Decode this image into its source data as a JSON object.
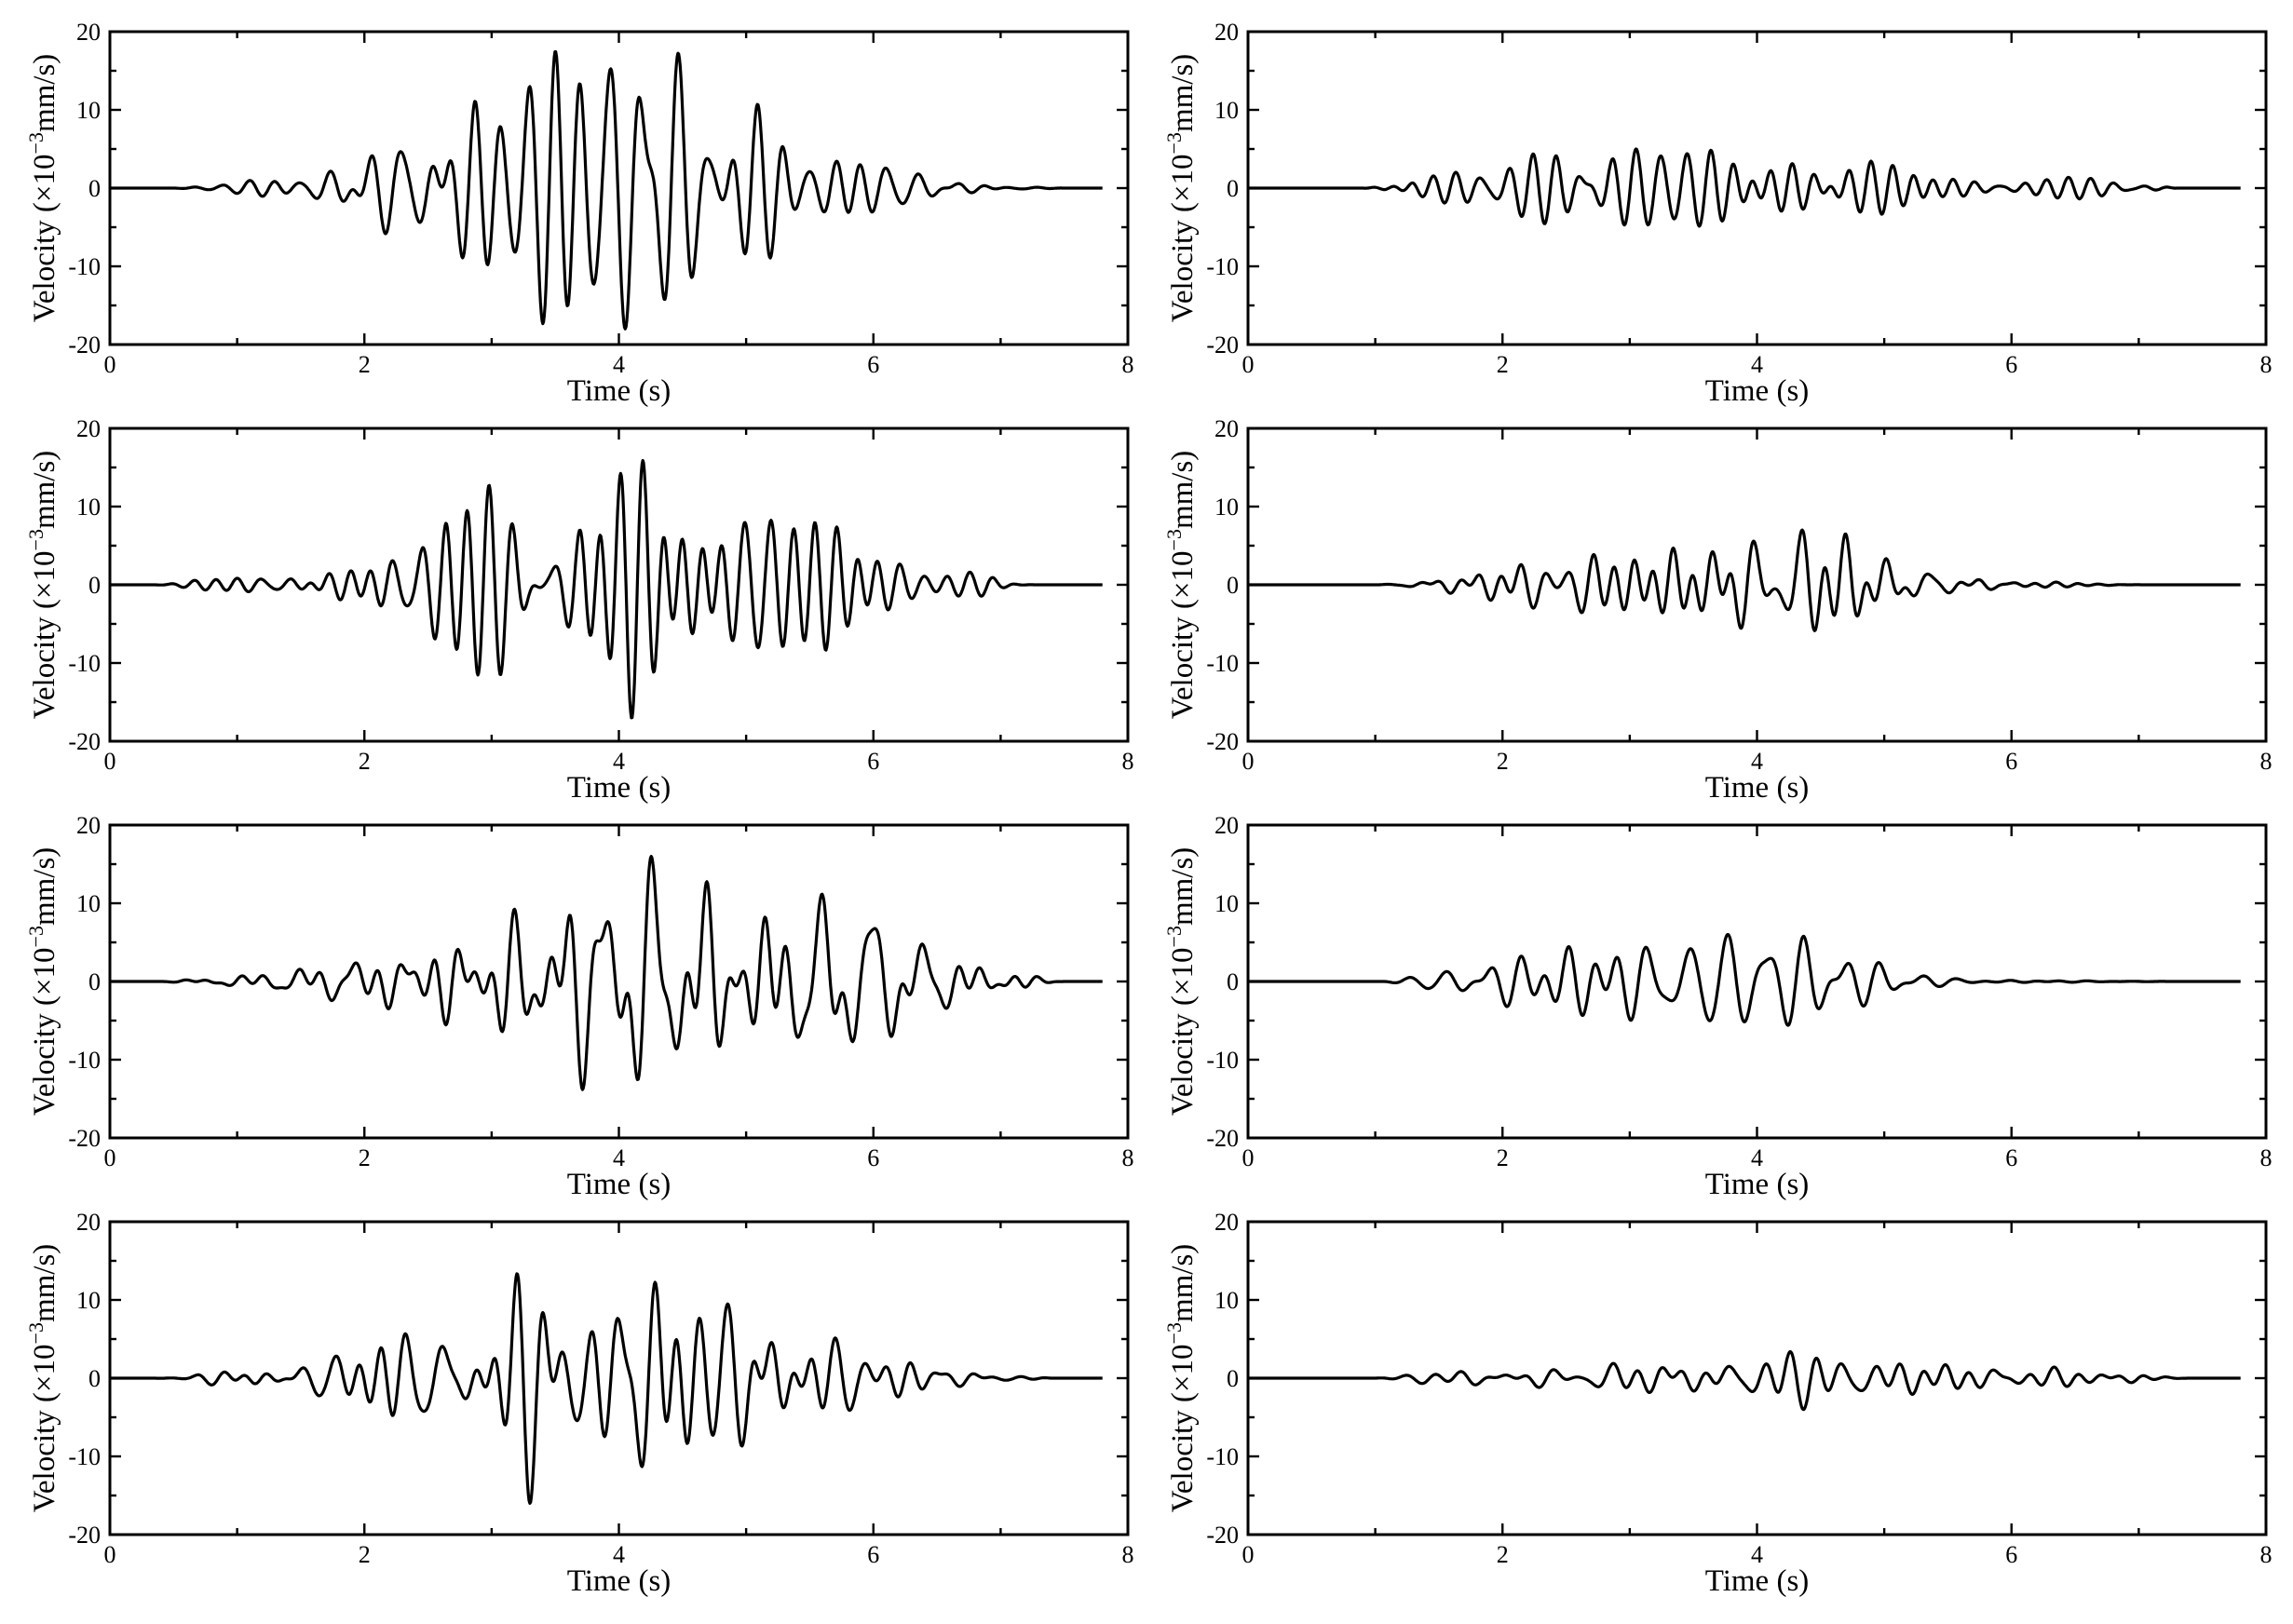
{
  "chart_data": [
    {
      "id": "r1c1",
      "type": "line",
      "xlabel": "Time (s)",
      "ylabel_main": "Velocity (×10",
      "ylabel_sup": "−3",
      "ylabel_tail": "mm/s)",
      "xlim": [
        0,
        8
      ],
      "ylim": [
        -20,
        20
      ],
      "xticks": [
        "0",
        "2",
        "4",
        "6",
        "8"
      ],
      "yticks": [
        "-20",
        "-10",
        "0",
        "10",
        "20"
      ],
      "series": [
        {
          "start": 0.5,
          "peak_time": 3.9,
          "end": 7.5,
          "amp": 18,
          "spread": 1.6,
          "seed": 11
        }
      ]
    },
    {
      "id": "r1c2",
      "type": "line",
      "xlabel": "Time (s)",
      "ylabel_main": "Velocity (×10",
      "ylabel_sup": "−3",
      "ylabel_tail": "mm/s)",
      "xlim": [
        0,
        8
      ],
      "ylim": [
        -20,
        20
      ],
      "xticks": [
        "0",
        "2",
        "4",
        "6",
        "8"
      ],
      "yticks": [
        "-20",
        "-10",
        "0",
        "10",
        "20"
      ],
      "series": [
        {
          "start": 0.9,
          "peak_time": 3.8,
          "end": 7.3,
          "amp": 5,
          "spread": 2.4,
          "seed": 23
        }
      ]
    },
    {
      "id": "r2c1",
      "type": "line",
      "xlabel": "Time (s)",
      "ylabel_main": "Velocity (×10",
      "ylabel_sup": "−3",
      "ylabel_tail": "mm/s)",
      "xlim": [
        0,
        8
      ],
      "ylim": [
        -20,
        20
      ],
      "xticks": [
        "0",
        "2",
        "4",
        "6",
        "8"
      ],
      "yticks": [
        "-20",
        "-10",
        "0",
        "10",
        "20"
      ],
      "series": [
        {
          "start": 0.3,
          "peak_time": 4.0,
          "end": 7.3,
          "amp": 17,
          "spread": 1.8,
          "seed": 37
        }
      ]
    },
    {
      "id": "r2c2",
      "type": "line",
      "xlabel": "Time (s)",
      "ylabel_main": "Velocity (×10",
      "ylabel_sup": "−3",
      "ylabel_tail": "mm/s)",
      "xlim": [
        0,
        8
      ],
      "ylim": [
        -20,
        20
      ],
      "xticks": [
        "0",
        "2",
        "4",
        "6",
        "8"
      ],
      "yticks": [
        "-20",
        "-10",
        "0",
        "10",
        "20"
      ],
      "series": [
        {
          "start": 1.0,
          "peak_time": 3.7,
          "end": 7.2,
          "amp": 7,
          "spread": 1.5,
          "seed": 41
        }
      ]
    },
    {
      "id": "r3c1",
      "type": "line",
      "xlabel": "Time (s)",
      "ylabel_main": "Velocity (×10",
      "ylabel_sup": "−3",
      "ylabel_tail": "mm/s)",
      "xlim": [
        0,
        8
      ],
      "ylim": [
        -20,
        20
      ],
      "xticks": [
        "0",
        "2",
        "4",
        "6",
        "8"
      ],
      "yticks": [
        "-20",
        "-10",
        "0",
        "10",
        "20"
      ],
      "series": [
        {
          "start": 0.4,
          "peak_time": 4.3,
          "end": 7.5,
          "amp": 16,
          "spread": 2.0,
          "seed": 53
        }
      ]
    },
    {
      "id": "r3c2",
      "type": "line",
      "xlabel": "Time (s)",
      "ylabel_main": "Velocity (×10",
      "ylabel_sup": "−3",
      "ylabel_tail": "mm/s)",
      "xlim": [
        0,
        8
      ],
      "ylim": [
        -20,
        20
      ],
      "xticks": [
        "0",
        "2",
        "4",
        "6",
        "8"
      ],
      "yticks": [
        "-20",
        "-10",
        "0",
        "10",
        "20"
      ],
      "series": [
        {
          "start": 1.0,
          "peak_time": 3.3,
          "end": 7.4,
          "amp": 6,
          "spread": 1.6,
          "seed": 67
        }
      ]
    },
    {
      "id": "r4c1",
      "type": "line",
      "xlabel": "Time (s)",
      "ylabel_main": "Velocity (×10",
      "ylabel_sup": "−3",
      "ylabel_tail": "mm/s)",
      "xlim": [
        0,
        8
      ],
      "ylim": [
        -20,
        20
      ],
      "xticks": [
        "0",
        "2",
        "4",
        "6",
        "8"
      ],
      "yticks": [
        "-20",
        "-10",
        "0",
        "10",
        "20"
      ],
      "series": [
        {
          "start": 0.3,
          "peak_time": 3.9,
          "end": 7.4,
          "amp": 16,
          "spread": 1.8,
          "seed": 79
        }
      ]
    },
    {
      "id": "r4c2",
      "type": "line",
      "xlabel": "Time (s)",
      "ylabel_main": "Velocity (×10",
      "ylabel_sup": "−3",
      "ylabel_tail": "mm/s)",
      "xlim": [
        0,
        8
      ],
      "ylim": [
        -20,
        20
      ],
      "xticks": [
        "0",
        "2",
        "4",
        "6",
        "8"
      ],
      "yticks": [
        "-20",
        "-10",
        "0",
        "10",
        "20"
      ],
      "series": [
        {
          "start": 1.0,
          "peak_time": 4.0,
          "end": 7.4,
          "amp": 4,
          "spread": 2.4,
          "seed": 97
        }
      ]
    }
  ]
}
